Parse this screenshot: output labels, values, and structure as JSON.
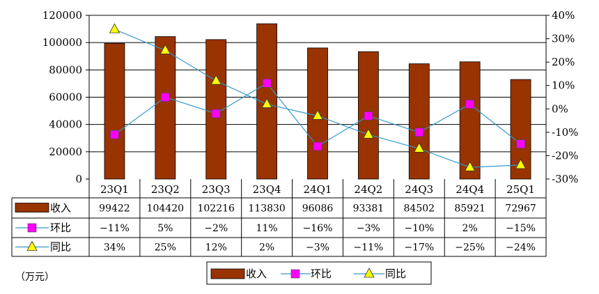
{
  "chart_data": {
    "type": "bar",
    "categories": [
      "23Q1",
      "23Q2",
      "23Q3",
      "23Q4",
      "24Q1",
      "24Q2",
      "24Q3",
      "24Q4",
      "25Q1"
    ],
    "unit_label": "（万元）",
    "y_left": {
      "ylim": [
        0,
        120000
      ],
      "ticks": [
        "0",
        "20000",
        "40000",
        "60000",
        "80000",
        "100000",
        "120000"
      ]
    },
    "y_right": {
      "ylim": [
        -30,
        40
      ],
      "ticks": [
        "-30%",
        "-20%",
        "-10%",
        "0%",
        "10%",
        "20%",
        "30%",
        "40%"
      ]
    },
    "grid": true,
    "legend_position": "bottom",
    "colors": {
      "revenue": "#993300",
      "qoq": "#ff00ff",
      "yoy": "#ffff00",
      "qoq_line": "#3399cc",
      "yoy_line": "#3399cc"
    },
    "series": [
      {
        "name": "收入",
        "kind": "bar",
        "axis": "left",
        "values": [
          99422,
          104420,
          102216,
          113830,
          96086,
          93381,
          84502,
          85921,
          72967
        ],
        "labels": [
          "99422",
          "104420",
          "102216",
          "113830",
          "96086",
          "93381",
          "84502",
          "85921",
          "72967"
        ]
      },
      {
        "name": "环比",
        "kind": "line",
        "marker": "square",
        "axis": "right",
        "values": [
          -11,
          5,
          -2,
          11,
          -16,
          -3,
          -10,
          2,
          -15
        ],
        "labels": [
          "-11%",
          "5%",
          "-2%",
          "11%",
          "-16%",
          "-3%",
          "-10%",
          "2%",
          "-15%"
        ]
      },
      {
        "name": "同比",
        "kind": "line",
        "marker": "triangle",
        "axis": "right",
        "values": [
          34,
          25,
          12,
          2,
          -3,
          -11,
          -17,
          -25,
          -24
        ],
        "labels": [
          "34%",
          "25%",
          "12%",
          "2%",
          "-3%",
          "-11%",
          "-17%",
          "-25%",
          "-24%"
        ]
      }
    ]
  }
}
